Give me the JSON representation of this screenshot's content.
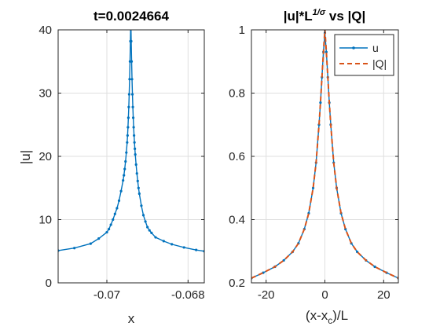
{
  "colors": {
    "u": "#0072BD",
    "q": "#D95319",
    "grid": "#DFDFDF",
    "axis": "#262626"
  },
  "chart_data": [
    {
      "type": "line",
      "title": "t=0.0024664",
      "xlabel": "x",
      "ylabel": "|u|",
      "xlim": [
        -0.0712,
        -0.0676
      ],
      "ylim": [
        0,
        40
      ],
      "xticks": [
        -0.07,
        -0.068
      ],
      "xtick_labels": [
        "-0.07",
        "-0.068"
      ],
      "yticks": [
        0,
        10,
        20,
        30,
        40
      ],
      "ytick_labels": [
        "0",
        "10",
        "20",
        "30",
        "40"
      ],
      "grid": true,
      "series": [
        {
          "name": "",
          "marker": "dot",
          "x": [
            -0.0712,
            -0.0708,
            -0.0704,
            -0.0702,
            -0.07,
            -0.06995,
            -0.0699,
            -0.06985,
            -0.0698,
            -0.06975,
            -0.0697,
            -0.06965,
            -0.0696,
            -0.06958,
            -0.06956,
            -0.06954,
            -0.06952,
            -0.0695,
            -0.06949,
            -0.06948,
            -0.06947,
            -0.06946,
            -0.06945,
            -0.06944,
            -0.06943,
            -0.06942,
            -0.06941,
            -0.0694,
            -0.06939,
            -0.06938,
            -0.06937,
            -0.06936,
            -0.06935,
            -0.06934,
            -0.06933,
            -0.06932,
            -0.06931,
            -0.0693,
            -0.06928,
            -0.06926,
            -0.06924,
            -0.06922,
            -0.0692,
            -0.06915,
            -0.0691,
            -0.06905,
            -0.069,
            -0.06895,
            -0.0689,
            -0.0688,
            -0.0686,
            -0.0684,
            -0.0681,
            -0.0678,
            -0.0676
          ],
          "y": [
            5.1,
            5.5,
            6.2,
            7.0,
            8.0,
            8.5,
            9.2,
            10.0,
            10.9,
            11.8,
            13.0,
            14.5,
            16.2,
            17.0,
            18.0,
            19.2,
            20.6,
            22.2,
            23.3,
            24.6,
            26.1,
            27.8,
            29.8,
            32.2,
            35.0,
            38.2,
            42.0,
            38.2,
            35.0,
            32.2,
            29.8,
            27.8,
            26.1,
            24.6,
            23.3,
            22.2,
            21.2,
            20.3,
            18.7,
            17.3,
            16.1,
            15.0,
            14.1,
            12.2,
            10.7,
            9.7,
            8.8,
            8.3,
            7.9,
            7.2,
            6.6,
            6.1,
            5.6,
            5.2,
            5.0
          ]
        }
      ]
    },
    {
      "type": "line",
      "title_main": "|u|*L",
      "title_sup": "1/σ",
      "title_rest": " vs |Q|",
      "xlabel_main": "(x-x",
      "xlabel_sub": "c",
      "xlabel_rest": ")/L",
      "ylabel": "",
      "xlim": [
        -25,
        25
      ],
      "ylim": [
        0.2,
        1
      ],
      "xticks": [
        -20,
        0,
        20
      ],
      "xtick_labels": [
        "-20",
        "0",
        "20"
      ],
      "yticks": [
        0.2,
        0.4,
        0.6,
        0.8,
        1
      ],
      "ytick_labels": [
        "0.2",
        "0.4",
        "0.6",
        "0.8",
        "1"
      ],
      "grid": true,
      "legend": "top-right",
      "series": [
        {
          "name": "u",
          "style": "solid",
          "marker": "dot",
          "x": [
            -25,
            -21,
            -17,
            -14,
            -11,
            -9,
            -7,
            -5.5,
            -4,
            -3,
            -2,
            -1.5,
            -1,
            -0.5,
            0,
            0.5,
            1,
            1.5,
            2,
            3,
            4,
            5.5,
            7,
            9,
            11,
            14,
            17,
            21,
            25
          ],
          "y": [
            0.215,
            0.232,
            0.251,
            0.271,
            0.298,
            0.325,
            0.37,
            0.42,
            0.5,
            0.58,
            0.7,
            0.77,
            0.85,
            0.93,
            0.99,
            0.93,
            0.85,
            0.77,
            0.7,
            0.58,
            0.5,
            0.42,
            0.37,
            0.325,
            0.298,
            0.271,
            0.251,
            0.232,
            0.215
          ]
        },
        {
          "name": "|Q|",
          "style": "dashed",
          "marker": "none",
          "x": [
            -25,
            -21,
            -17,
            -14,
            -11,
            -9,
            -7,
            -5.5,
            -4,
            -3,
            -2,
            -1.5,
            -1,
            -0.5,
            0,
            0.5,
            1,
            1.5,
            2,
            3,
            4,
            5.5,
            7,
            9,
            11,
            14,
            17,
            21,
            25
          ],
          "y": [
            0.215,
            0.232,
            0.251,
            0.271,
            0.298,
            0.325,
            0.37,
            0.42,
            0.5,
            0.58,
            0.7,
            0.77,
            0.85,
            0.93,
            1.0,
            0.93,
            0.85,
            0.77,
            0.7,
            0.58,
            0.5,
            0.42,
            0.37,
            0.325,
            0.298,
            0.271,
            0.251,
            0.232,
            0.215
          ]
        }
      ]
    }
  ]
}
